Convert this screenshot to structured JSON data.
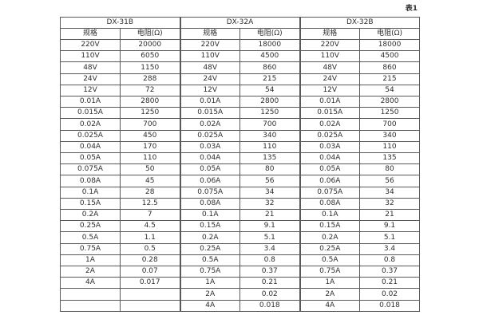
{
  "caption": "表1",
  "colors": {
    "border": "#595959",
    "text": "#2e2e2e",
    "background": "#ffffff"
  },
  "table": {
    "groups": [
      {
        "name": "DX-31B",
        "columns": [
          "规格",
          "电阻(Ω)"
        ]
      },
      {
        "name": "DX-32A",
        "columns": [
          "规格",
          "电阻(Ω)"
        ]
      },
      {
        "name": "DX-32B",
        "columns": [
          "规格",
          "电阻(Ω)"
        ]
      }
    ],
    "rows": [
      [
        "220V",
        "20000",
        "220V",
        "18000",
        "220V",
        "18000"
      ],
      [
        "110V",
        "6050",
        "110V",
        "4500",
        "110V",
        "4500"
      ],
      [
        "48V",
        "1150",
        "48V",
        "860",
        "48V",
        "860"
      ],
      [
        "24V",
        "288",
        "24V",
        "215",
        "24V",
        "215"
      ],
      [
        "12V",
        "72",
        "12V",
        "54",
        "12V",
        "54"
      ],
      [
        "0.01A",
        "2800",
        "0.01A",
        "2800",
        "0.01A",
        "2800"
      ],
      [
        "0.015A",
        "1250",
        "0.015A",
        "1250",
        "0.015A",
        "1250"
      ],
      [
        "0.02A",
        "700",
        "0.02A",
        "700",
        "0.02A",
        "700"
      ],
      [
        "0.025A",
        "450",
        "0.025A",
        "340",
        "0.025A",
        "340"
      ],
      [
        "0.04A",
        "170",
        "0.03A",
        "110",
        "0.03A",
        "110"
      ],
      [
        "0.05A",
        "110",
        "0.04A",
        "135",
        "0.04A",
        "135"
      ],
      [
        "0.075A",
        "50",
        "0.05A",
        "80",
        "0.05A",
        "80"
      ],
      [
        "0.08A",
        "45",
        "0.06A",
        "56",
        "0.06A",
        "56"
      ],
      [
        "0.1A",
        "28",
        "0.075A",
        "34",
        "0.075A",
        "34"
      ],
      [
        "0.15A",
        "12.5",
        "0.08A",
        "32",
        "0.08A",
        "32"
      ],
      [
        "0.2A",
        "7",
        "0.1A",
        "21",
        "0.1A",
        "21"
      ],
      [
        "0.25A",
        "4.5",
        "0.15A",
        "9.1",
        "0.15A",
        "9.1"
      ],
      [
        "0.5A",
        "1.1",
        "0.2A",
        "5.1",
        "0.2A",
        "5.1"
      ],
      [
        "0.75A",
        "0.5",
        "0.25A",
        "3.4",
        "0.25A",
        "3.4"
      ],
      [
        "1A",
        "0.28",
        "0.5A",
        "0.8",
        "0.5A",
        "0.8"
      ],
      [
        "2A",
        "0.07",
        "0.75A",
        "0.37",
        "0.75A",
        "0.37"
      ],
      [
        "4A",
        "0.017",
        "1A",
        "0.21",
        "1A",
        "0.21"
      ],
      [
        "",
        "",
        "2A",
        "0.02",
        "2A",
        "0.02"
      ],
      [
        "",
        "",
        "4A",
        "0.018",
        "4A",
        "0.018"
      ]
    ]
  }
}
